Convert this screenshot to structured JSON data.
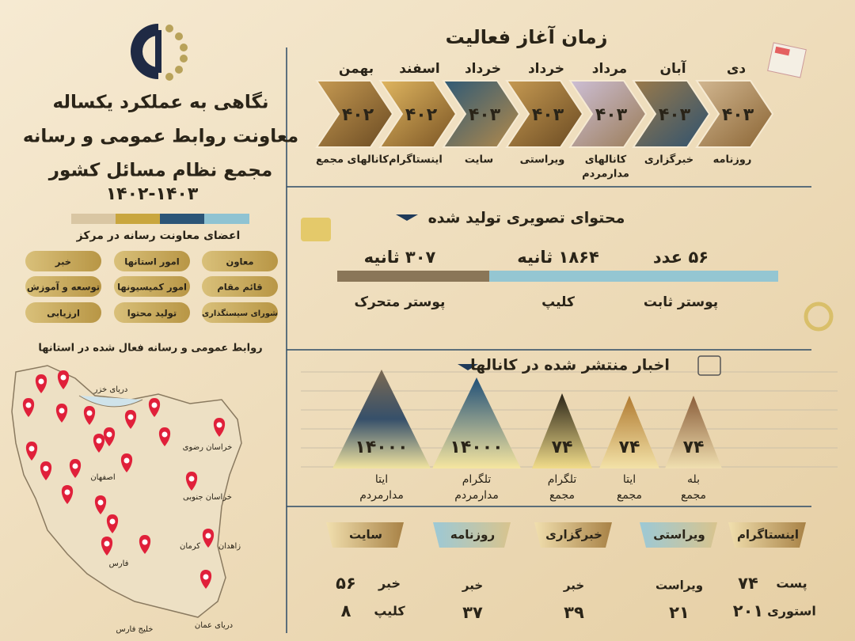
{
  "header": {
    "title_lines": [
      "نگاهی به عملکرد یکساله",
      "معاونت روابط عمومی و رسانه",
      "مجمع نظام مسائل کشور"
    ],
    "years": "۱۴۰۲-۱۴۰۳"
  },
  "members": {
    "title": "اعضای معاونت رسانه در مرکز",
    "items": [
      "معاون",
      "امور استانها",
      "خبر",
      "قائم مقام",
      "امور کمیسیونها",
      "توسعه و آموزش",
      "شورای سیستگذاری",
      "تولید محتوا",
      "ارزیابی"
    ]
  },
  "provinces": {
    "title": "روابط عمومی و رسانه فعال شده در استانها",
    "map_labels": [
      "دریای خزر",
      "خراسان رضوی",
      "خراسان جنوبی",
      "اصفهان",
      "کرمان",
      "فارس",
      "زاهدان",
      "خلیج فارس",
      "دریای عمان"
    ]
  },
  "timeline": {
    "title": "زمان آغاز فعالیت",
    "items": [
      {
        "month": "دی",
        "year": "۴۰۳",
        "label_lines": [
          "روزنامه"
        ]
      },
      {
        "month": "آبان",
        "year": "۴۰۳",
        "label_lines": [
          "خبرگزاری"
        ]
      },
      {
        "month": "مرداد",
        "year": "۴۰۳",
        "label_lines": [
          "کانالهای",
          "مدارمردم"
        ]
      },
      {
        "month": "خرداد",
        "year": "۴۰۳",
        "label_lines": [
          "ویراستی"
        ]
      },
      {
        "month": "خرداد",
        "year": "۴۰۳",
        "label_lines": [
          "سایت"
        ]
      },
      {
        "month": "اسفند",
        "year": "۴۰۲",
        "label_lines": [
          "اینستاگرام"
        ]
      },
      {
        "month": "بهمن",
        "year": "۴۰۲",
        "label_lines": [
          "کانالهای مجمع"
        ]
      }
    ]
  },
  "visual": {
    "title": "محتوای تصویری تولید شده",
    "items": [
      {
        "value": "۵۶ عدد",
        "label": "پوستر ثابت"
      },
      {
        "value": "۱۸۶۴ ثانیه",
        "label": "کلیپ"
      },
      {
        "value": "۳۰۷ ثانیه",
        "label": "پوستر متحرک"
      }
    ]
  },
  "news": {
    "title": "اخبار منتشر شده در کانالها",
    "items": [
      {
        "value": "۷۴",
        "label_lines": [
          "بله",
          "مجمع"
        ]
      },
      {
        "value": "۷۴",
        "label_lines": [
          "ایتا",
          "مجمع"
        ]
      },
      {
        "value": "۷۴",
        "label_lines": [
          "تلگرام",
          "مجمع"
        ]
      },
      {
        "value": "۱۴۰۰۰",
        "label_lines": [
          "تلگرام",
          "مدارمردم"
        ]
      },
      {
        "value": "۱۴۰۰۰",
        "label_lines": [
          "ایتا",
          "مدارمردم"
        ]
      }
    ]
  },
  "platforms": [
    {
      "name": "اینستاگرام",
      "stats": [
        {
          "label": "پست",
          "value": "۷۴"
        },
        {
          "label": "استوری",
          "value": "۲۰۱"
        }
      ]
    },
    {
      "name": "ویراستی",
      "stats": [
        {
          "label": "ویراست",
          "value": "۲۱"
        }
      ]
    },
    {
      "name": "خبرگزاری",
      "stats": [
        {
          "label": "خبر",
          "value": "۳۹"
        }
      ]
    },
    {
      "name": "روزنامه",
      "stats": [
        {
          "label": "خبر",
          "value": "۳۷"
        }
      ]
    },
    {
      "name": "سایت",
      "stats": [
        {
          "label": "خبر",
          "value": "۵۶"
        },
        {
          "label": "کلیپ",
          "value": "۸"
        }
      ]
    }
  ]
}
